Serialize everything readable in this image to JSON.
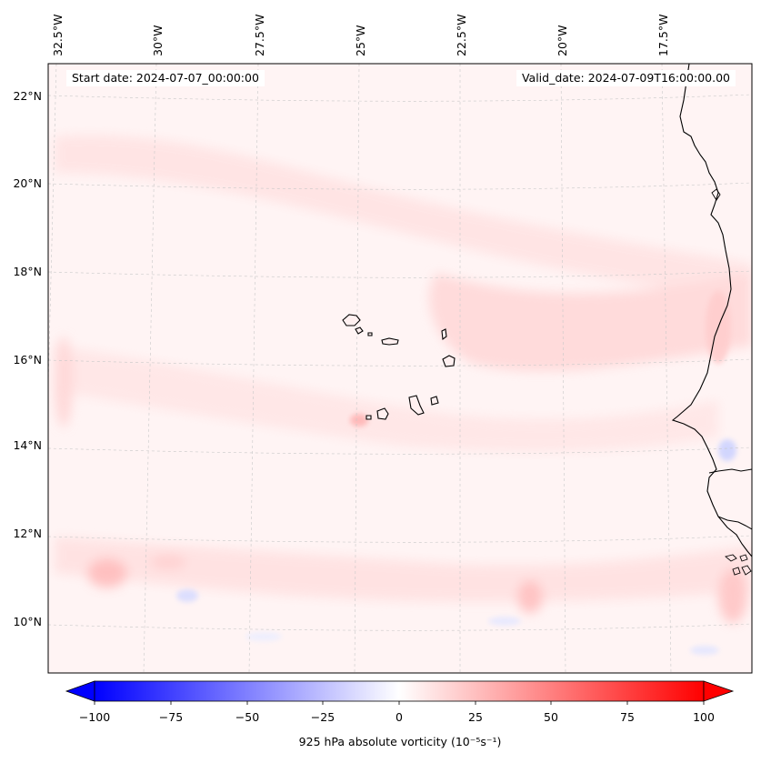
{
  "map": {
    "start_date": "Start date: 2024-07-07_00:00:00",
    "valid_date": "Valid_date: 2024-07-09T16:00:00.00",
    "lon_labels": [
      "32.5°W",
      "30°W",
      "27.5°W",
      "25°W",
      "22.5°W",
      "20°W",
      "17.5°W"
    ],
    "lat_labels": [
      "22°N",
      "20°N",
      "18°N",
      "16°N",
      "14°N",
      "12°N",
      "10°N"
    ],
    "colormap": {
      "low": "#0000ff",
      "mid": "#ffffff",
      "high": "#ff0000"
    }
  },
  "colorbar": {
    "label": "925 hPa absolute vorticity",
    "unit_label": "(10⁻⁵s⁻¹)",
    "range": [
      -100,
      100
    ],
    "ticks": [
      "−100",
      "−75",
      "−50",
      "−25",
      "0",
      "25",
      "50",
      "75",
      "100"
    ]
  }
}
